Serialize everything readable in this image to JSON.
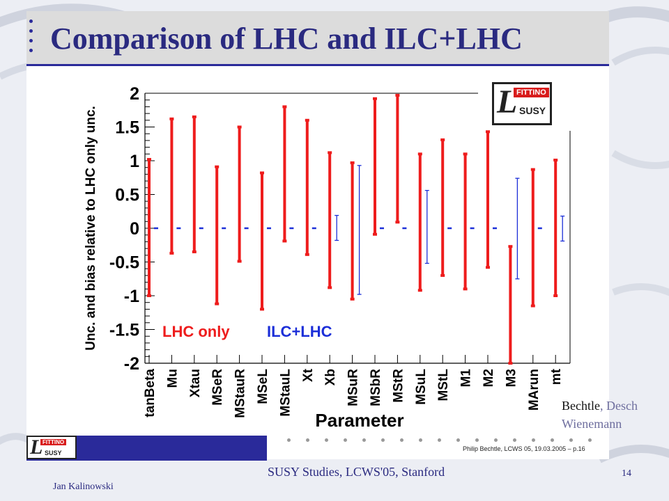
{
  "slide": {
    "title": "Comparison of LHC and ILC+LHC",
    "authors": {
      "name1": "Bechtle",
      "separator": ", ",
      "name2": "Desch",
      "name3": "Wienemann"
    },
    "presenter": "Jan Kalinowski",
    "conference": "SUSY Studies,  LCWS'05, Stanford",
    "page_number": "14",
    "footer_note": "Philip Bechtle, LCWS 05, 19.03.2005 – p.16",
    "logo": {
      "brand": "FITTINO",
      "letter": "L",
      "sub": "SUSY"
    }
  },
  "colors": {
    "lhc": "#ee1c1c",
    "ilc": "#1c2fd8",
    "title_text": "#2a2a80",
    "footer_band": "#2a2a9a"
  },
  "chart_data": {
    "type": "errorbar",
    "title": "",
    "xlabel": "Parameter",
    "ylabel": "Unc. and bias relative to LHC only unc.",
    "ylim": [
      -2,
      2
    ],
    "yticks": [
      "2",
      "1.5",
      "1",
      "0.5",
      "0",
      "-0.5",
      "-1",
      "-1.5",
      "-2"
    ],
    "grid": false,
    "legend_placement": "bottom-left",
    "categories": [
      "tanBeta",
      "Mu",
      "Xtau",
      "MSeR",
      "MStauR",
      "MSeL",
      "MStauL",
      "Xt",
      "Xb",
      "MSuR",
      "MSbR",
      "MStR",
      "MSuL",
      "MStL",
      "M1",
      "M2",
      "M3",
      "MArun",
      "mt"
    ],
    "series": [
      {
        "name": "LHC only",
        "color": "#ee1c1c",
        "low": [
          -1.0,
          -0.37,
          -0.35,
          -1.12,
          -0.49,
          -1.2,
          -0.19,
          -0.39,
          -0.88,
          -1.05,
          -0.09,
          0.09,
          -0.92,
          -0.7,
          -0.9,
          -0.58,
          -2.0,
          -1.15,
          -1.0
        ],
        "high": [
          1.02,
          1.62,
          1.65,
          0.91,
          1.5,
          0.82,
          1.8,
          1.6,
          1.12,
          0.97,
          1.92,
          1.97,
          1.1,
          1.31,
          1.1,
          1.43,
          -0.27,
          0.87,
          1.01
        ]
      },
      {
        "name": "ILC+LHC",
        "color": "#1c2fd8",
        "low": [
          -0.01,
          -0.01,
          -0.01,
          -0.01,
          -0.01,
          -0.01,
          -0.01,
          -0.01,
          -0.18,
          -0.98,
          -0.01,
          -0.01,
          -0.52,
          -0.01,
          -0.01,
          -0.01,
          -0.75,
          -0.01,
          -0.19
        ],
        "high": [
          0.01,
          0.01,
          0.01,
          0.01,
          0.01,
          0.01,
          0.01,
          0.01,
          0.19,
          0.93,
          0.01,
          0.01,
          0.56,
          0.01,
          0.01,
          0.01,
          0.74,
          0.01,
          0.18
        ]
      }
    ]
  }
}
